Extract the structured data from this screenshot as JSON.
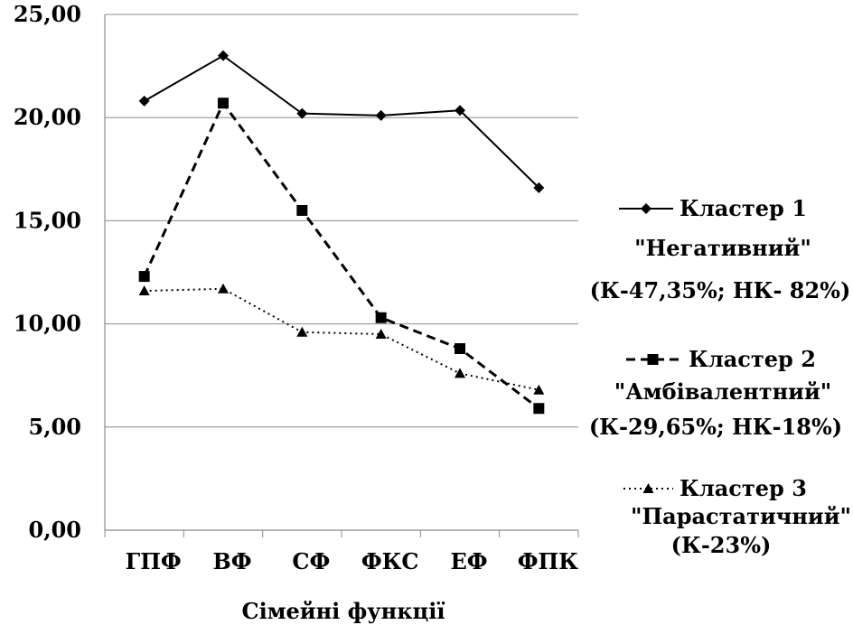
{
  "chart_data": {
    "type": "line",
    "xlabel": "Сімейні функції",
    "ylabel": "",
    "categories": [
      "ГПФ",
      "ВФ",
      "СФ",
      "ФКС",
      "ЕФ",
      "ФПК"
    ],
    "ylim": [
      0,
      25
    ],
    "yticks": [
      "0,00",
      "5,00",
      "10,00",
      "15,00",
      "20,00",
      "25,00"
    ],
    "grid": true,
    "legend_position": "right",
    "series": [
      {
        "name": "Кластер 1",
        "label_lines": [
          "\"Негативний\"",
          "(К-47,35%;  НК- 82%)"
        ],
        "values": [
          20.8,
          23.0,
          20.2,
          20.1,
          20.35,
          16.6
        ],
        "style": "solid",
        "marker": "diamond",
        "color": "#000000"
      },
      {
        "name": "Кластер 2",
        "label_lines": [
          "\"Амбівалентний\"",
          "(К-29,65%; НК-18%)"
        ],
        "values": [
          12.3,
          20.7,
          15.5,
          10.3,
          8.8,
          5.9
        ],
        "style": "dashed",
        "marker": "square",
        "color": "#000000"
      },
      {
        "name": "Кластер 3",
        "label_lines": [
          "\"Парастатичний\"",
          "(К-23%)"
        ],
        "values": [
          11.6,
          11.7,
          9.6,
          9.5,
          7.6,
          6.8
        ],
        "style": "dotted",
        "marker": "triangle",
        "color": "#000000"
      }
    ]
  }
}
